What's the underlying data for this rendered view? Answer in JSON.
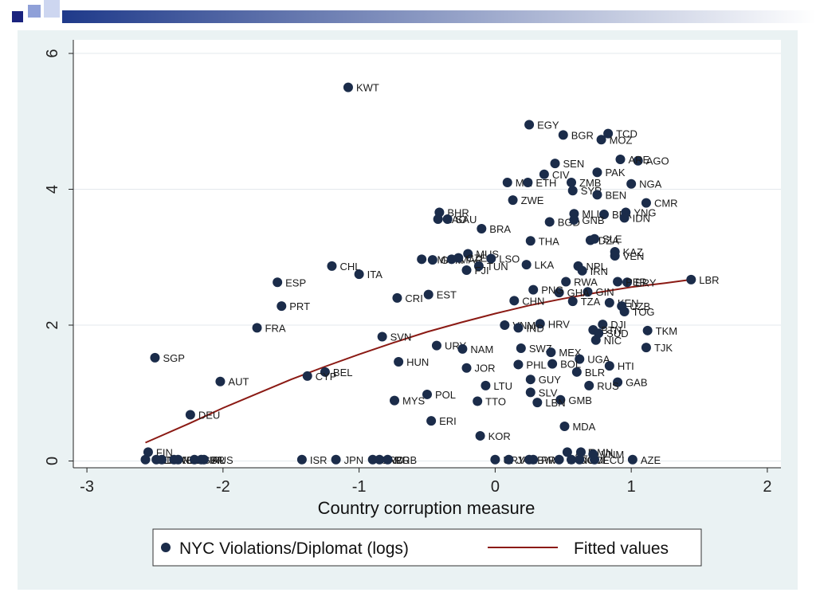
{
  "colors": {
    "point": "#1b2c4a",
    "fit": "#8b1a14",
    "panel": "#eaf2f3",
    "plot": "#ffffff",
    "deco": "#1f3a8a"
  },
  "chart_data": {
    "type": "scatter",
    "xlabel": "Country corruption measure",
    "ylabel": "",
    "xlim": [
      -3.1,
      2.1
    ],
    "ylim": [
      -0.1,
      6.2
    ],
    "xticks": [
      -3,
      -2,
      -1,
      0,
      1,
      2
    ],
    "yticks": [
      0,
      2,
      4,
      6
    ],
    "grid": true,
    "legend_position": "bottom",
    "legend": {
      "points_label": "NYC Violations/Diplomat (logs)",
      "fit_label": "Fitted values"
    },
    "points": [
      {
        "label": "KWT",
        "x": -1.08,
        "y": 5.5
      },
      {
        "label": "EGY",
        "x": 0.25,
        "y": 4.95
      },
      {
        "label": "BGR",
        "x": 0.5,
        "y": 4.8
      },
      {
        "label": "TCD",
        "x": 0.83,
        "y": 4.82
      },
      {
        "label": "MOZ",
        "x": 0.78,
        "y": 4.73
      },
      {
        "label": "SEN",
        "x": 0.44,
        "y": 4.38
      },
      {
        "label": "AGO",
        "x": 1.05,
        "y": 4.42
      },
      {
        "label": "ARE",
        "x": 0.92,
        "y": 4.44
      },
      {
        "label": "PAK",
        "x": 0.75,
        "y": 4.25
      },
      {
        "label": "CIV",
        "x": 0.36,
        "y": 4.22
      },
      {
        "label": "MLI",
        "x": 0.09,
        "y": 4.1
      },
      {
        "label": "ETH",
        "x": 0.24,
        "y": 4.1
      },
      {
        "label": "ZMB",
        "x": 0.56,
        "y": 4.1
      },
      {
        "label": "NGA",
        "x": 1.0,
        "y": 4.08
      },
      {
        "label": "SYR",
        "x": 0.57,
        "y": 3.98
      },
      {
        "label": "BEN",
        "x": 0.75,
        "y": 3.92
      },
      {
        "label": "ZWE",
        "x": 0.13,
        "y": 3.84
      },
      {
        "label": "CMR",
        "x": 1.11,
        "y": 3.8
      },
      {
        "label": "BHR",
        "x": -0.41,
        "y": 3.66
      },
      {
        "label": "LAO",
        "x": -0.42,
        "y": 3.56
      },
      {
        "label": "SAU",
        "x": -0.35,
        "y": 3.56
      },
      {
        "label": "MLI",
        "x": 0.58,
        "y": 3.64
      },
      {
        "label": "BFA",
        "x": 0.8,
        "y": 3.63
      },
      {
        "label": "YNG",
        "x": 0.96,
        "y": 3.66
      },
      {
        "label": "IDN",
        "x": 0.95,
        "y": 3.58
      },
      {
        "label": "BGD",
        "x": 0.4,
        "y": 3.52
      },
      {
        "label": "GNB",
        "x": 0.58,
        "y": 3.55
      },
      {
        "label": "BRA",
        "x": -0.1,
        "y": 3.42
      },
      {
        "label": "THA",
        "x": 0.26,
        "y": 3.24
      },
      {
        "label": "DZA",
        "x": 0.7,
        "y": 3.25
      },
      {
        "label": "SLE",
        "x": 0.73,
        "y": 3.27
      },
      {
        "label": "KAZ",
        "x": 0.88,
        "y": 3.08
      },
      {
        "label": "VEN",
        "x": 0.88,
        "y": 3.02
      },
      {
        "label": "MUS",
        "x": -0.2,
        "y": 3.05
      },
      {
        "label": "LSO",
        "x": -0.03,
        "y": 2.98
      },
      {
        "label": "DMA",
        "x": -0.54,
        "y": 2.97
      },
      {
        "label": "GTM",
        "x": -0.46,
        "y": 2.96
      },
      {
        "label": "MAR",
        "x": -0.32,
        "y": 2.97
      },
      {
        "label": "CZE",
        "x": -0.27,
        "y": 2.99
      },
      {
        "label": "TUN",
        "x": -0.12,
        "y": 2.87
      },
      {
        "label": "FJI",
        "x": -0.21,
        "y": 2.81
      },
      {
        "label": "LKA",
        "x": 0.23,
        "y": 2.89
      },
      {
        "label": "NPL",
        "x": 0.61,
        "y": 2.87
      },
      {
        "label": "IRN",
        "x": 0.64,
        "y": 2.8
      },
      {
        "label": "CHL",
        "x": -1.2,
        "y": 2.87
      },
      {
        "label": "ITA",
        "x": -1.0,
        "y": 2.75
      },
      {
        "label": "ESP",
        "x": -1.6,
        "y": 2.63
      },
      {
        "label": "LBR",
        "x": 1.44,
        "y": 2.67
      },
      {
        "label": "RWA",
        "x": 0.52,
        "y": 2.64
      },
      {
        "label": "ERY",
        "x": 0.97,
        "y": 2.63
      },
      {
        "label": "PER",
        "x": 0.9,
        "y": 2.64
      },
      {
        "label": "GIN",
        "x": 0.68,
        "y": 2.49
      },
      {
        "label": "GHA",
        "x": 0.47,
        "y": 2.48
      },
      {
        "label": "PNG",
        "x": 0.28,
        "y": 2.52
      },
      {
        "label": "EST",
        "x": -0.49,
        "y": 2.45
      },
      {
        "label": "CRI",
        "x": -0.72,
        "y": 2.4
      },
      {
        "label": "CHN",
        "x": 0.14,
        "y": 2.36
      },
      {
        "label": "PRT",
        "x": -1.57,
        "y": 2.28
      },
      {
        "label": "TZA",
        "x": 0.57,
        "y": 2.35
      },
      {
        "label": "KEN",
        "x": 0.84,
        "y": 2.33
      },
      {
        "label": "UZB",
        "x": 0.93,
        "y": 2.28
      },
      {
        "label": "TOG",
        "x": 0.95,
        "y": 2.2
      },
      {
        "label": "FRA",
        "x": -1.75,
        "y": 1.96
      },
      {
        "label": "HRV",
        "x": 0.33,
        "y": 2.02
      },
      {
        "label": "VNM",
        "x": 0.07,
        "y": 2.0
      },
      {
        "label": "IND",
        "x": 0.17,
        "y": 1.96
      },
      {
        "label": "DJI",
        "x": 0.79,
        "y": 2.01
      },
      {
        "label": "BTN",
        "x": 0.72,
        "y": 1.93
      },
      {
        "label": "SUD",
        "x": 0.76,
        "y": 1.88
      },
      {
        "label": "NIC",
        "x": 0.74,
        "y": 1.78
      },
      {
        "label": "TKM",
        "x": 1.12,
        "y": 1.92
      },
      {
        "label": "SVN",
        "x": -0.83,
        "y": 1.83
      },
      {
        "label": "SGP",
        "x": -2.5,
        "y": 1.52
      },
      {
        "label": "URY",
        "x": -0.43,
        "y": 1.7
      },
      {
        "label": "NAM",
        "x": -0.24,
        "y": 1.65
      },
      {
        "label": "SWZ",
        "x": 0.19,
        "y": 1.66
      },
      {
        "label": "MEX",
        "x": 0.41,
        "y": 1.6
      },
      {
        "label": "TJK",
        "x": 1.11,
        "y": 1.67
      },
      {
        "label": "HUN",
        "x": -0.71,
        "y": 1.46
      },
      {
        "label": "UGA",
        "x": 0.62,
        "y": 1.5
      },
      {
        "label": "HTI",
        "x": 0.84,
        "y": 1.4
      },
      {
        "label": "PHL",
        "x": 0.17,
        "y": 1.42
      },
      {
        "label": "BOL",
        "x": 0.42,
        "y": 1.43
      },
      {
        "label": "JOR",
        "x": -0.21,
        "y": 1.37
      },
      {
        "label": "BLR",
        "x": 0.6,
        "y": 1.31
      },
      {
        "label": "BEL",
        "x": -1.25,
        "y": 1.31
      },
      {
        "label": "CYP",
        "x": -1.38,
        "y": 1.25
      },
      {
        "label": "AUT",
        "x": -2.02,
        "y": 1.17
      },
      {
        "label": "GUY",
        "x": 0.26,
        "y": 1.2
      },
      {
        "label": "GAB",
        "x": 0.9,
        "y": 1.16
      },
      {
        "label": "LTU",
        "x": -0.07,
        "y": 1.11
      },
      {
        "label": "RUS",
        "x": 0.69,
        "y": 1.11
      },
      {
        "label": "SLV",
        "x": 0.26,
        "y": 1.01
      },
      {
        "label": "POL",
        "x": -0.5,
        "y": 0.98
      },
      {
        "label": "GMB",
        "x": 0.48,
        "y": 0.9
      },
      {
        "label": "MYS",
        "x": -0.74,
        "y": 0.89
      },
      {
        "label": "TTO",
        "x": -0.13,
        "y": 0.88
      },
      {
        "label": "LBN",
        "x": 0.31,
        "y": 0.86
      },
      {
        "label": "DEU",
        "x": -2.24,
        "y": 0.68
      },
      {
        "label": "ERI",
        "x": -0.47,
        "y": 0.59
      },
      {
        "label": "MDA",
        "x": 0.51,
        "y": 0.51
      },
      {
        "label": "KOR",
        "x": -0.11,
        "y": 0.37
      },
      {
        "label": "FIN",
        "x": -2.55,
        "y": 0.13
      },
      {
        "label": "NLD",
        "x": -2.57,
        "y": 0.02
      },
      {
        "label": "DNK",
        "x": -2.49,
        "y": 0.02
      },
      {
        "label": "SWE",
        "x": -2.45,
        "y": 0.02
      },
      {
        "label": "NZL",
        "x": -2.36,
        "y": 0.02
      },
      {
        "label": "CAN",
        "x": -2.33,
        "y": 0.02
      },
      {
        "label": "GBR",
        "x": -2.21,
        "y": 0.02
      },
      {
        "label": "IRL",
        "x": -2.16,
        "y": 0.02
      },
      {
        "label": "AUS",
        "x": -2.14,
        "y": 0.02
      },
      {
        "label": "ISR",
        "x": -1.42,
        "y": 0.02
      },
      {
        "label": "JPN",
        "x": -1.17,
        "y": 0.02
      },
      {
        "label": "GRC",
        "x": -0.9,
        "y": 0.02
      },
      {
        "label": "ARG",
        "x": -0.85,
        "y": 0.02
      },
      {
        "label": "BRB",
        "x": -0.79,
        "y": 0.02
      },
      {
        "label": "URY",
        "x": 0.0,
        "y": 0.02
      },
      {
        "label": "JAM",
        "x": 0.1,
        "y": 0.02
      },
      {
        "label": "BWA",
        "x": 0.25,
        "y": 0.02
      },
      {
        "label": "PRY",
        "x": 0.28,
        "y": 0.02
      },
      {
        "label": "PAN",
        "x": 0.47,
        "y": 0.02
      },
      {
        "label": "DOM",
        "x": 0.56,
        "y": 0.02
      },
      {
        "label": "COL",
        "x": 0.62,
        "y": 0.02
      },
      {
        "label": "ECU",
        "x": 0.73,
        "y": 0.02
      },
      {
        "label": "AZE",
        "x": 1.01,
        "y": 0.02
      },
      {
        "label": "ALB",
        "x": 0.53,
        "y": 0.13
      },
      {
        "label": "OMN",
        "x": 0.63,
        "y": 0.13
      },
      {
        "label": "VNM",
        "x": 0.72,
        "y": 0.1
      }
    ],
    "fitted": {
      "x": [
        -2.57,
        -2.25,
        -2.0,
        -1.75,
        -1.5,
        -1.25,
        -1.0,
        -0.75,
        -0.5,
        -0.25,
        0.0,
        0.25,
        0.5,
        0.75,
        1.0,
        1.25,
        1.44
      ],
      "y": [
        0.27,
        0.55,
        0.78,
        0.99,
        1.2,
        1.39,
        1.57,
        1.74,
        1.9,
        2.04,
        2.17,
        2.29,
        2.39,
        2.48,
        2.56,
        2.62,
        2.67
      ]
    }
  }
}
